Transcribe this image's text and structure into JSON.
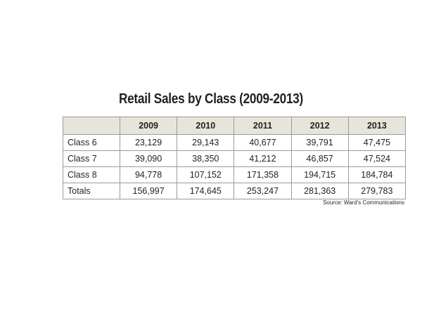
{
  "title": "Retail Sales by Class (2009-2013)",
  "source": "Source: Ward's Communications",
  "chart_data": {
    "type": "table",
    "title": "Retail Sales by Class (2009-2013)",
    "columns": [
      "",
      "2009",
      "2010",
      "2011",
      "2012",
      "2013"
    ],
    "rows": [
      {
        "label": "Class 6",
        "values": [
          "23,129",
          "29,143",
          "40,677",
          "39,791",
          "47,475"
        ]
      },
      {
        "label": "Class 7",
        "values": [
          "39,090",
          "38,350",
          "41,212",
          "46,857",
          "47,524"
        ]
      },
      {
        "label": "Class 8",
        "values": [
          "94,778",
          "107,152",
          "171,358",
          "194,715",
          "184,784"
        ]
      },
      {
        "label": "Totals",
        "values": [
          "156,997",
          "174,645",
          "253,247",
          "281,363",
          "279,783"
        ]
      }
    ],
    "header_color": "#e7e4d9",
    "border_color": "#9a9a9a"
  }
}
